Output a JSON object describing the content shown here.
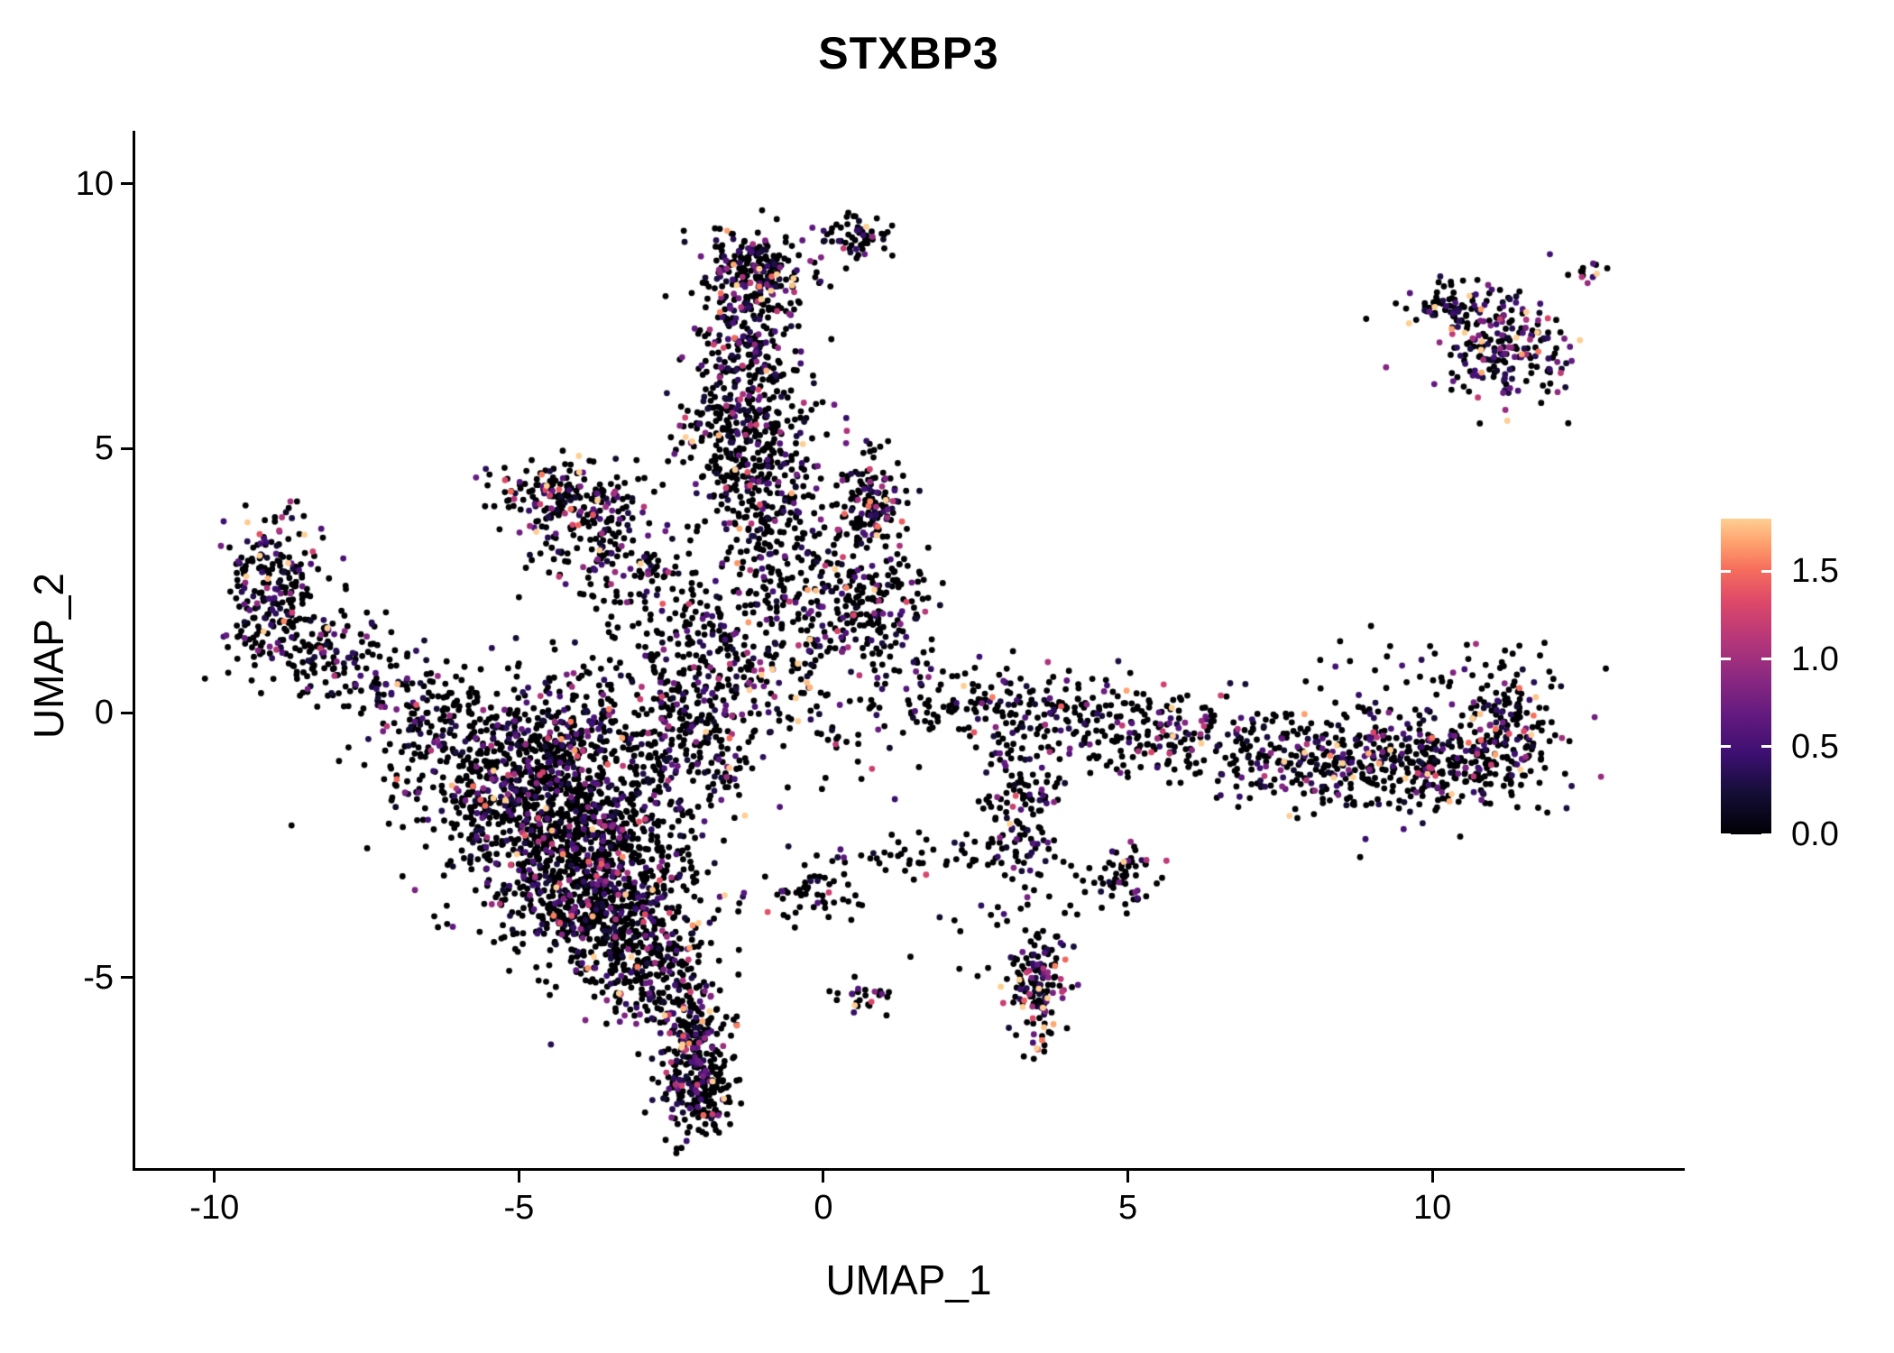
{
  "chart_data": {
    "type": "scatter",
    "title": "STXBP3",
    "xlabel": "UMAP_1",
    "ylabel": "UMAP_2",
    "xlim": [
      -11.3,
      14.1
    ],
    "ylim": [
      -8.6,
      11.0
    ],
    "x_ticks": [
      -10,
      -5,
      0,
      5,
      10
    ],
    "y_ticks": [
      -5,
      0,
      5,
      10
    ],
    "grid": false,
    "axis_color": "#000000",
    "point_radius_px": 3.4,
    "seed": 7,
    "legend": {
      "position": "right",
      "label_values": [
        0.0,
        0.5,
        1.0,
        1.5
      ],
      "domain": [
        0,
        1.8
      ]
    },
    "colormap": {
      "name": "magma",
      "stops": [
        [
          0.0,
          "#000004"
        ],
        [
          0.13,
          "#140e36"
        ],
        [
          0.25,
          "#3b0f70"
        ],
        [
          0.38,
          "#641a80"
        ],
        [
          0.5,
          "#8c2981"
        ],
        [
          0.62,
          "#b73779"
        ],
        [
          0.74,
          "#de4968"
        ],
        [
          0.84,
          "#f66e5c"
        ],
        [
          0.92,
          "#fe9f6d"
        ],
        [
          1.0,
          "#fecf92"
        ]
      ]
    },
    "clusters": [
      {
        "name": "left-blob-core",
        "c": [
          -4.6,
          -1.0
        ],
        "sd": [
          1.15,
          0.85
        ],
        "n": 900,
        "p0": 0.74
      },
      {
        "name": "left-blob-mid",
        "c": [
          -4.1,
          -2.5
        ],
        "sd": [
          0.95,
          0.8
        ],
        "n": 700,
        "p0": 0.74
      },
      {
        "name": "left-blob-lower",
        "c": [
          -3.5,
          -3.8
        ],
        "sd": [
          0.7,
          0.6
        ],
        "n": 400,
        "p0": 0.72
      },
      {
        "name": "left-blob-tip",
        "c": [
          -2.9,
          -4.9
        ],
        "sd": [
          0.45,
          0.5
        ],
        "n": 200,
        "p0": 0.72
      },
      {
        "name": "bottom-tail",
        "c": [
          -2.15,
          -6.3
        ],
        "sd": [
          0.33,
          0.75
        ],
        "n": 250,
        "p0": 0.7,
        "expr": 0.55
      },
      {
        "name": "bottom-tail-tip",
        "c": [
          -1.95,
          -7.2
        ],
        "sd": [
          0.28,
          0.35
        ],
        "n": 110,
        "p0": 0.68,
        "expr": 0.55
      },
      {
        "name": "left-arm-top",
        "c": [
          -9.0,
          2.7
        ],
        "sd": [
          0.4,
          0.65
        ],
        "n": 160,
        "p0": 0.66
      },
      {
        "name": "left-arm-mid",
        "c": [
          -8.5,
          1.5
        ],
        "sd": [
          0.6,
          0.5
        ],
        "n": 140,
        "p0": 0.7
      },
      {
        "name": "left-arm-inner",
        "c": [
          -7.3,
          0.6
        ],
        "sd": [
          0.7,
          0.4
        ],
        "n": 110,
        "p0": 0.72,
        "rot": -0.35
      },
      {
        "name": "left-arm-bridge",
        "c": [
          -6.3,
          -0.1
        ],
        "sd": [
          0.5,
          0.35
        ],
        "n": 60,
        "p0": 0.75
      },
      {
        "name": "top-column-cap",
        "c": [
          -1.05,
          8.3
        ],
        "sd": [
          0.45,
          0.42
        ],
        "n": 230,
        "p0": 0.68,
        "expr": 0.55
      },
      {
        "name": "top-right-blob",
        "c": [
          0.55,
          9.0
        ],
        "sd": [
          0.28,
          0.22
        ],
        "n": 55,
        "p0": 0.7
      },
      {
        "name": "top-column-upper",
        "c": [
          -1.25,
          6.9
        ],
        "sd": [
          0.42,
          0.7
        ],
        "n": 180,
        "p0": 0.7
      },
      {
        "name": "top-column-mid",
        "c": [
          -1.35,
          5.6
        ],
        "sd": [
          0.5,
          0.8
        ],
        "n": 230,
        "p0": 0.7
      },
      {
        "name": "top-column-base",
        "c": [
          -1.1,
          4.6
        ],
        "sd": [
          0.6,
          0.5
        ],
        "n": 160,
        "p0": 0.72
      },
      {
        "name": "triangle-edge",
        "c": [
          -4.25,
          4.15
        ],
        "sd": [
          0.55,
          0.3
        ],
        "n": 150,
        "p0": 0.6,
        "expr": 0.55
      },
      {
        "name": "triangle-body",
        "c": [
          -3.8,
          3.4
        ],
        "sd": [
          0.6,
          0.55
        ],
        "n": 130,
        "p0": 0.7
      },
      {
        "name": "triangle-trail",
        "c": [
          -3.1,
          2.5
        ],
        "sd": [
          0.5,
          0.4
        ],
        "n": 60,
        "p0": 0.75
      },
      {
        "name": "mid-scatter-upper",
        "c": [
          -0.6,
          2.9
        ],
        "sd": [
          0.85,
          0.9
        ],
        "n": 280,
        "p0": 0.74
      },
      {
        "name": "mid-clump-a",
        "c": [
          0.75,
          3.95
        ],
        "sd": [
          0.3,
          0.4
        ],
        "n": 120,
        "p0": 0.66,
        "expr": 0.55
      },
      {
        "name": "mid-clump-b",
        "c": [
          0.8,
          2.0
        ],
        "sd": [
          0.5,
          0.5
        ],
        "n": 150,
        "p0": 0.7
      },
      {
        "name": "mid-scatter-left",
        "c": [
          -1.5,
          1.1
        ],
        "sd": [
          0.95,
          0.6
        ],
        "n": 200,
        "p0": 0.75
      },
      {
        "name": "blob-neck",
        "c": [
          -2.1,
          -0.2
        ],
        "sd": [
          0.6,
          0.85
        ],
        "n": 200,
        "p0": 0.74
      },
      {
        "name": "band-start",
        "c": [
          2.5,
          0.2
        ],
        "sd": [
          0.65,
          0.38
        ],
        "n": 90,
        "p0": 0.72
      },
      {
        "name": "band-sparse",
        "c": [
          4.2,
          -0.1
        ],
        "sd": [
          0.8,
          0.4
        ],
        "n": 130,
        "p0": 0.72
      },
      {
        "name": "band-mid",
        "c": [
          6.0,
          -0.45
        ],
        "sd": [
          1.0,
          0.4
        ],
        "n": 170,
        "p0": 0.7
      },
      {
        "name": "band-dense-a",
        "c": [
          8.3,
          -0.9
        ],
        "sd": [
          1.0,
          0.45
        ],
        "n": 260,
        "p0": 0.68
      },
      {
        "name": "band-dense-b",
        "c": [
          10.3,
          -0.85
        ],
        "sd": [
          0.9,
          0.5
        ],
        "n": 300,
        "p0": 0.66
      },
      {
        "name": "band-hook",
        "c": [
          11.3,
          -0.1
        ],
        "sd": [
          0.3,
          0.6
        ],
        "n": 100,
        "p0": 0.68
      },
      {
        "name": "band-upper-dots",
        "c": [
          9.8,
          0.9
        ],
        "sd": [
          1.0,
          0.35
        ],
        "n": 35,
        "p0": 0.7
      },
      {
        "name": "mid-chain",
        "c": [
          1.6,
          -2.7
        ],
        "sd": [
          0.8,
          0.18
        ],
        "n": 50,
        "p0": 0.8
      },
      {
        "name": "small-cluster-a",
        "c": [
          3.3,
          -2.2
        ],
        "sd": [
          0.35,
          0.55
        ],
        "n": 80,
        "p0": 0.7
      },
      {
        "name": "small-cluster-b",
        "c": [
          4.85,
          -3.1
        ],
        "sd": [
          0.35,
          0.3
        ],
        "n": 60,
        "p0": 0.66,
        "expr": 0.55
      },
      {
        "name": "bottom-strip",
        "c": [
          3.5,
          -5.2
        ],
        "sd": [
          0.24,
          0.55
        ],
        "n": 140,
        "p0": 0.55,
        "expr": 0.65
      },
      {
        "name": "tiny-pair",
        "c": [
          0.65,
          -5.3
        ],
        "sd": [
          0.18,
          0.15
        ],
        "n": 25,
        "p0": 0.7
      },
      {
        "name": "below-band-sparse",
        "c": [
          2.8,
          -3.9
        ],
        "sd": [
          0.9,
          0.6
        ],
        "n": 25,
        "p0": 0.8
      },
      {
        "name": "band-connector",
        "c": [
          3.2,
          -1.3
        ],
        "sd": [
          0.3,
          0.55
        ],
        "n": 50,
        "p0": 0.72
      },
      {
        "name": "mid-bottom-dots",
        "c": [
          -0.3,
          -3.4
        ],
        "sd": [
          0.55,
          0.3
        ],
        "n": 55,
        "p0": 0.75
      },
      {
        "name": "topright-main",
        "c": [
          11.15,
          6.9
        ],
        "sd": [
          0.55,
          0.5
        ],
        "n": 210,
        "p0": 0.55,
        "expr": 0.6
      },
      {
        "name": "topright-top",
        "c": [
          10.4,
          7.65
        ],
        "sd": [
          0.4,
          0.22
        ],
        "n": 60,
        "p0": 0.6,
        "expr": 0.6
      },
      {
        "name": "topright-tiny",
        "c": [
          12.55,
          8.3
        ],
        "sd": [
          0.15,
          0.12
        ],
        "n": 12,
        "p0": 0.4,
        "expr": 0.8
      },
      {
        "name": "center-noise",
        "c": [
          0.4,
          0.3
        ],
        "sd": [
          1.0,
          0.8
        ],
        "n": 80,
        "p0": 0.78
      }
    ]
  }
}
